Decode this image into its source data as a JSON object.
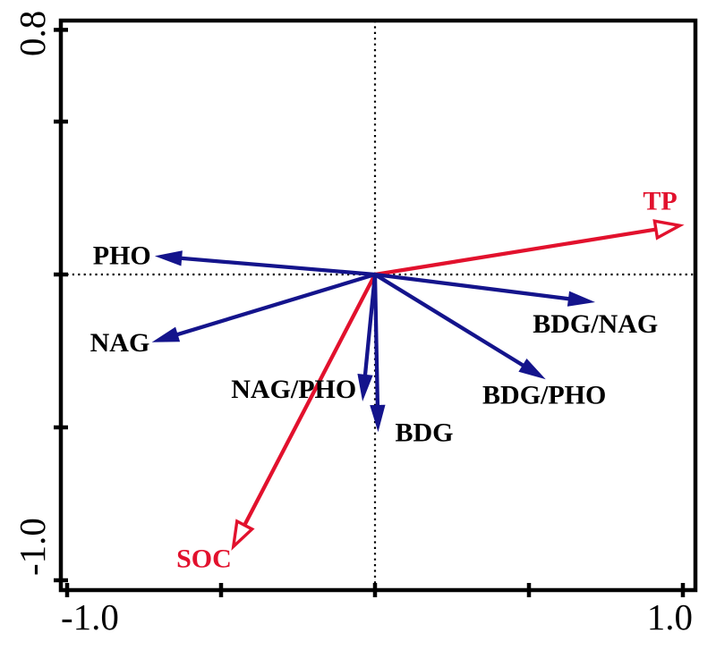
{
  "figure": {
    "description": "Ordination biplot with environmental factor arrows (red, open heads) and enzyme activity arrows (blue, filled heads)",
    "background": "#ffffff",
    "frame_color": "#000000"
  },
  "chart_data": {
    "type": "scatter",
    "subtype": "biplot-arrows",
    "title": "",
    "xlabel": "",
    "ylabel": "",
    "xlim": [
      -1.0,
      1.0
    ],
    "ylim": [
      -1.0,
      0.8
    ],
    "x_ticks": [
      -1.0,
      -0.5,
      0.0,
      0.5,
      1.0
    ],
    "y_ticks": [
      0.8,
      0.5,
      0.0,
      -0.5,
      -1.0
    ],
    "x_tick_labels": [
      {
        "value": -1.0,
        "text": "-1.0"
      },
      {
        "value": 1.0,
        "text": "1.0"
      }
    ],
    "y_tick_labels": [
      {
        "value": 0.8,
        "text": "0.8"
      },
      {
        "value": -1.0,
        "text": "-1.0"
      }
    ],
    "grid": "dotted zero lines at x=0 and y=0",
    "legend_position": "none",
    "colors": {
      "env_arrow": "#E2112D",
      "enzyme_arrow": "#14148C",
      "axis": "#000000",
      "label_black": "#000000"
    },
    "arrows": [
      {
        "label": "TP",
        "x": 0.99,
        "y": 0.16,
        "group": "environment",
        "color": "#E2112D",
        "head": "open",
        "label_anchor": "middle",
        "label_dx": -22,
        "label_dy": -18
      },
      {
        "label": "SOC",
        "x": -0.46,
        "y": -0.89,
        "group": "environment",
        "color": "#E2112D",
        "head": "open",
        "label_anchor": "end",
        "label_dx": -2,
        "label_dy": 23
      },
      {
        "label": "PHO",
        "x": -0.71,
        "y": 0.06,
        "group": "enzyme",
        "color": "#14148C",
        "head": "filled",
        "label_anchor": "end",
        "label_dx": -6,
        "label_dy": 9
      },
      {
        "label": "NAG",
        "x": -0.72,
        "y": -0.22,
        "group": "enzyme",
        "color": "#14148C",
        "head": "filled",
        "label_anchor": "end",
        "label_dx": -4,
        "label_dy": 11
      },
      {
        "label": "NAG/PHO",
        "x": -0.04,
        "y": -0.41,
        "group": "enzyme",
        "color": "#14148C",
        "head": "filled",
        "label_anchor": "end",
        "label_dx": -7,
        "label_dy": -2
      },
      {
        "label": "BDG",
        "x": 0.01,
        "y": -0.51,
        "group": "enzyme",
        "color": "#14148C",
        "head": "filled",
        "label_anchor": "start",
        "label_dx": 19,
        "label_dy": 12
      },
      {
        "label": "BDG/NAG",
        "x": 0.71,
        "y": -0.09,
        "group": "enzyme",
        "color": "#14148C",
        "head": "filled",
        "label_anchor": "middle",
        "label_dx": 2,
        "label_dy": 34
      },
      {
        "label": "BDG/PHO",
        "x": 0.55,
        "y": -0.34,
        "group": "enzyme",
        "color": "#14148C",
        "head": "filled",
        "label_anchor": "middle",
        "label_dx": 0,
        "label_dy": 28
      }
    ]
  }
}
